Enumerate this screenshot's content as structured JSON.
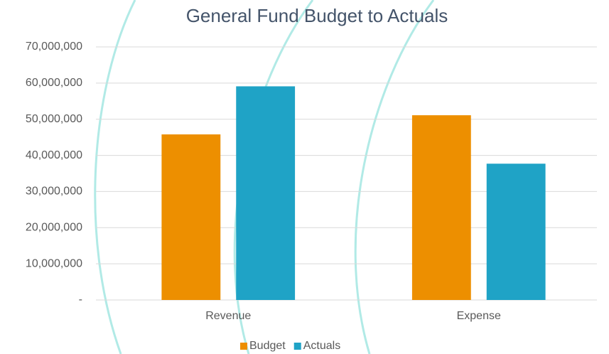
{
  "chart_data": {
    "type": "bar",
    "title": "General Fund Budget to Actuals",
    "categories": [
      "Revenue",
      "Expense"
    ],
    "series": [
      {
        "name": "Budget",
        "color": "#ed8f00",
        "values": [
          45800000,
          51100000
        ]
      },
      {
        "name": "Actuals",
        "color": "#1fa3c6",
        "values": [
          59100000,
          37700000
        ]
      }
    ],
    "ylim": [
      0,
      70000000
    ],
    "yticks": [
      {
        "value": 0,
        "label": "-"
      },
      {
        "value": 10000000,
        "label": "10,000,000"
      },
      {
        "value": 20000000,
        "label": "20,000,000"
      },
      {
        "value": 30000000,
        "label": "30,000,000"
      },
      {
        "value": 40000000,
        "label": "40,000,000"
      },
      {
        "value": 50000000,
        "label": "50,000,000"
      },
      {
        "value": 60000000,
        "label": "60,000,000"
      },
      {
        "value": 70000000,
        "label": "70,000,000"
      }
    ],
    "grid": true,
    "legend": "bottom"
  }
}
